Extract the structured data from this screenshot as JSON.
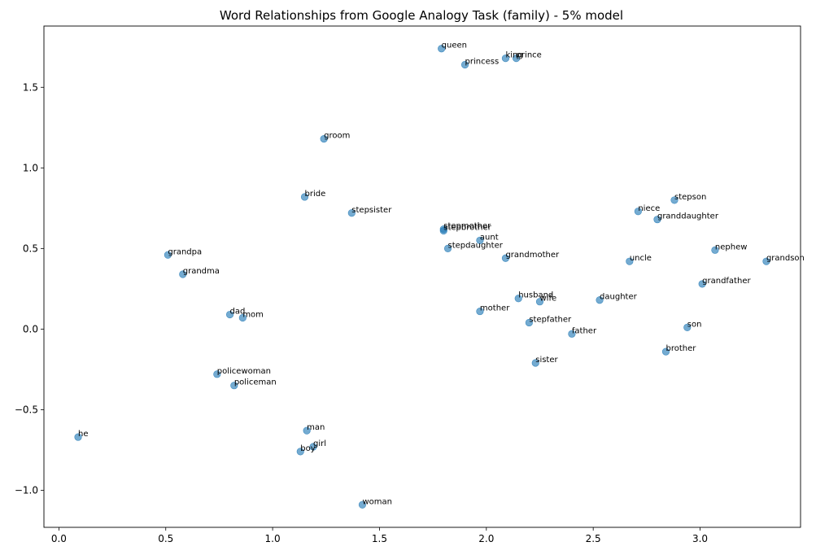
{
  "chart_data": {
    "type": "scatter",
    "title": "Word Relationships from Google Analogy Task (family) - 5% model",
    "xlabel": "",
    "ylabel": "",
    "xlim": [
      -0.07,
      3.47
    ],
    "ylim": [
      -1.23,
      1.88
    ],
    "xticks": [
      0.0,
      0.5,
      1.0,
      1.5,
      2.0,
      2.5,
      3.0
    ],
    "yticks": [
      -1.0,
      -0.5,
      0.0,
      0.5,
      1.0,
      1.5
    ],
    "xtick_labels": [
      "0.0",
      "0.5",
      "1.0",
      "1.5",
      "2.0",
      "2.5",
      "3.0"
    ],
    "ytick_labels": [
      "−1.0",
      "−0.5",
      "0.0",
      "0.5",
      "1.0",
      "1.5"
    ],
    "grid": false,
    "point_color": "#1f77b4",
    "points": [
      {
        "label": "queen",
        "x": 1.79,
        "y": 1.74
      },
      {
        "label": "princess",
        "x": 1.9,
        "y": 1.64
      },
      {
        "label": "king",
        "x": 2.09,
        "y": 1.68
      },
      {
        "label": "prince",
        "x": 2.14,
        "y": 1.68
      },
      {
        "label": "groom",
        "x": 1.24,
        "y": 1.18
      },
      {
        "label": "bride",
        "x": 1.15,
        "y": 0.82
      },
      {
        "label": "stepsister",
        "x": 1.37,
        "y": 0.72
      },
      {
        "label": "stepmother",
        "x": 1.8,
        "y": 0.62
      },
      {
        "label": "stepbrother",
        "x": 1.8,
        "y": 0.61
      },
      {
        "label": "aunt",
        "x": 1.97,
        "y": 0.55
      },
      {
        "label": "stepdaughter",
        "x": 1.82,
        "y": 0.5
      },
      {
        "label": "grandmother",
        "x": 2.09,
        "y": 0.44
      },
      {
        "label": "stepson",
        "x": 2.88,
        "y": 0.8
      },
      {
        "label": "niece",
        "x": 2.71,
        "y": 0.73
      },
      {
        "label": "granddaughter",
        "x": 2.8,
        "y": 0.68
      },
      {
        "label": "nephew",
        "x": 3.07,
        "y": 0.49
      },
      {
        "label": "uncle",
        "x": 2.67,
        "y": 0.42
      },
      {
        "label": "grandson",
        "x": 3.31,
        "y": 0.42
      },
      {
        "label": "grandfather",
        "x": 3.01,
        "y": 0.28
      },
      {
        "label": "grandpa",
        "x": 0.51,
        "y": 0.46
      },
      {
        "label": "grandma",
        "x": 0.58,
        "y": 0.34
      },
      {
        "label": "dad",
        "x": 0.8,
        "y": 0.09
      },
      {
        "label": "mom",
        "x": 0.86,
        "y": 0.07
      },
      {
        "label": "husband",
        "x": 2.15,
        "y": 0.19
      },
      {
        "label": "wife",
        "x": 2.25,
        "y": 0.17
      },
      {
        "label": "daughter",
        "x": 2.53,
        "y": 0.18
      },
      {
        "label": "mother",
        "x": 1.97,
        "y": 0.11
      },
      {
        "label": "stepfather",
        "x": 2.2,
        "y": 0.04
      },
      {
        "label": "father",
        "x": 2.4,
        "y": -0.03
      },
      {
        "label": "son",
        "x": 2.94,
        "y": 0.01
      },
      {
        "label": "brother",
        "x": 2.84,
        "y": -0.14
      },
      {
        "label": "sister",
        "x": 2.23,
        "y": -0.21
      },
      {
        "label": "policewoman",
        "x": 0.74,
        "y": -0.28
      },
      {
        "label": "policeman",
        "x": 0.82,
        "y": -0.35
      },
      {
        "label": "he",
        "x": 0.09,
        "y": -0.67
      },
      {
        "label": "man",
        "x": 1.16,
        "y": -0.63
      },
      {
        "label": "girl",
        "x": 1.19,
        "y": -0.73
      },
      {
        "label": "boy",
        "x": 1.13,
        "y": -0.76
      },
      {
        "label": "woman",
        "x": 1.42,
        "y": -1.09
      }
    ]
  }
}
